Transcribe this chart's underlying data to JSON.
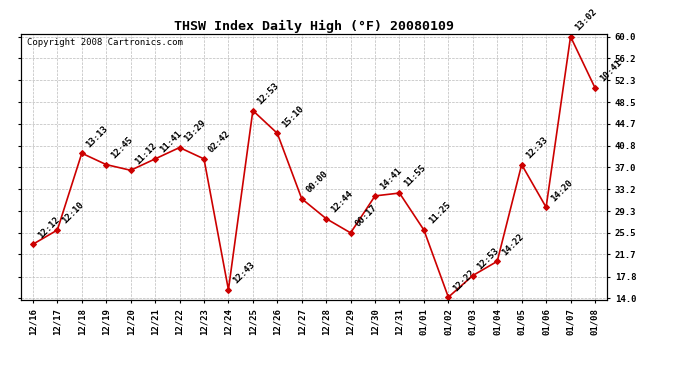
{
  "title": "THSW Index Daily High (°F) 20080109",
  "copyright": "Copyright 2008 Cartronics.com",
  "x_labels": [
    "12/16",
    "12/17",
    "12/18",
    "12/19",
    "12/20",
    "12/21",
    "12/22",
    "12/23",
    "12/24",
    "12/25",
    "12/26",
    "12/27",
    "12/28",
    "12/29",
    "12/30",
    "12/31",
    "01/01",
    "01/02",
    "01/03",
    "01/04",
    "01/05",
    "01/06",
    "01/07",
    "01/08"
  ],
  "y_values": [
    23.5,
    26.0,
    39.5,
    37.5,
    36.5,
    38.5,
    40.5,
    38.5,
    15.5,
    47.0,
    43.0,
    31.5,
    28.0,
    25.5,
    32.0,
    32.5,
    26.0,
    14.2,
    18.0,
    20.5,
    37.5,
    30.0,
    60.0,
    51.0
  ],
  "time_labels": [
    "12:12",
    "12:10",
    "13:13",
    "12:45",
    "11:12",
    "11:41",
    "13:29",
    "02:42",
    "12:43",
    "12:53",
    "15:10",
    "00:00",
    "12:44",
    "00:17",
    "14:41",
    "11:55",
    "11:25",
    "12:22",
    "12:53",
    "14:22",
    "12:33",
    "14:20",
    "13:02",
    "10:41"
  ],
  "y_ticks": [
    14.0,
    17.8,
    21.7,
    25.5,
    29.3,
    33.2,
    37.0,
    40.8,
    44.7,
    48.5,
    52.3,
    56.2,
    60.0
  ],
  "ylim": [
    14.0,
    60.0
  ],
  "line_color": "#cc0000",
  "marker_color": "#cc0000",
  "bg_color": "#ffffff",
  "grid_color": "#bbbbbb",
  "title_fontsize": 9.5,
  "tick_fontsize": 6.5,
  "copyright_fontsize": 6.5,
  "annotation_fontsize": 6.5
}
